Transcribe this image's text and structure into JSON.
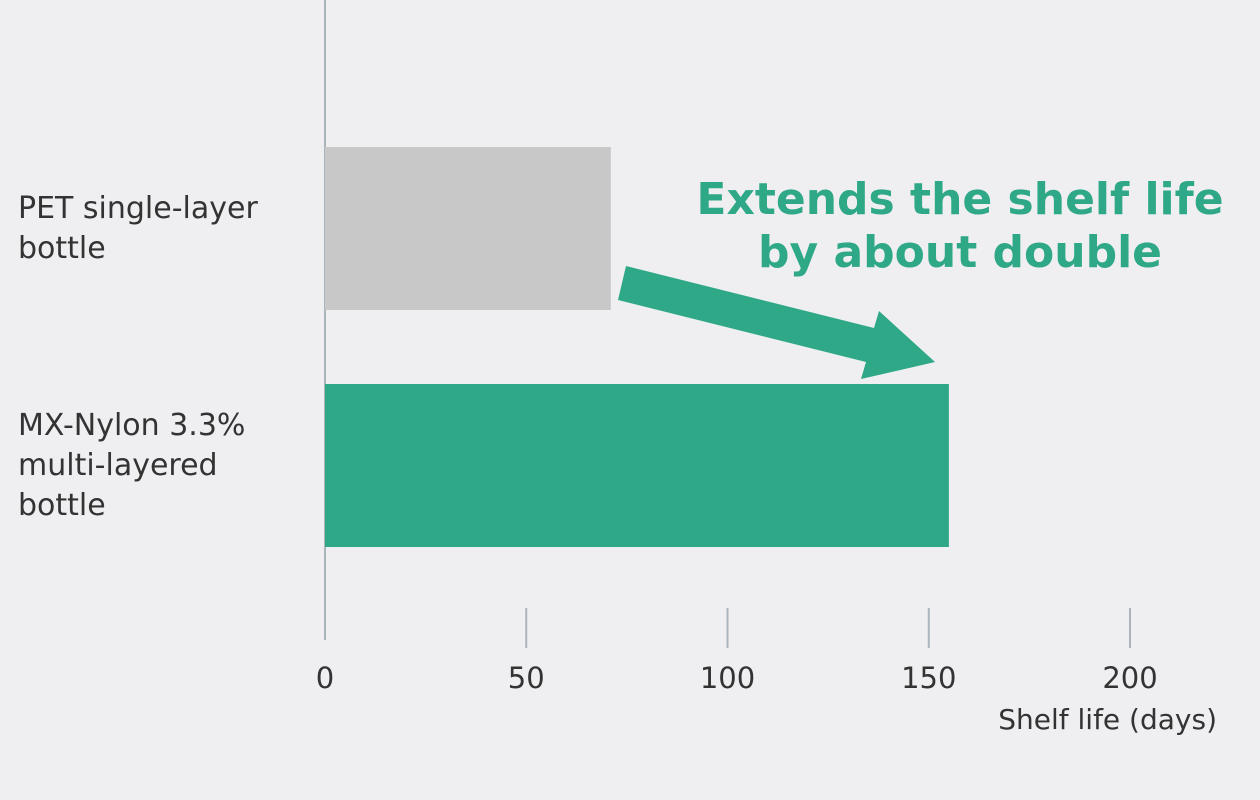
{
  "chart_data": {
    "type": "barh",
    "categories": [
      "PET single-layer\nbottle",
      "MX-Nylon 3.3%\nmulti-layered\nbottle"
    ],
    "values": [
      71,
      155
    ],
    "colors": [
      "#c8c8c8",
      "#2ea887"
    ],
    "xlim": [
      0,
      200
    ],
    "xticks": [
      0,
      50,
      100,
      150,
      200
    ],
    "x_label": "Shelf life (days)",
    "annotation": "Extends the shelf life\nby about double"
  }
}
